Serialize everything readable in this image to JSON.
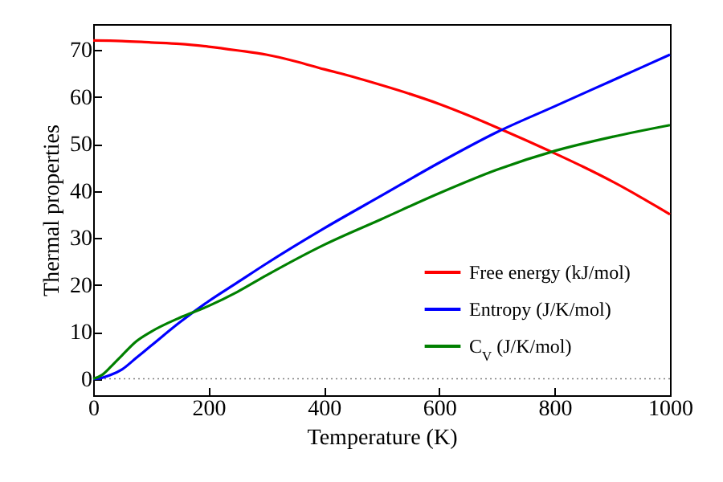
{
  "chart_data": {
    "type": "line",
    "xlabel": "Temperature (K)",
    "ylabel": "Thermal properties",
    "xlim": [
      0,
      1000
    ],
    "xticks": [
      0,
      200,
      400,
      600,
      800,
      1000
    ],
    "ylim": [
      -3.5,
      75.5
    ],
    "yticks": [
      0,
      10,
      20,
      30,
      40,
      50,
      60,
      70
    ],
    "legend": "bottom right",
    "grid": false,
    "line_style": "solid",
    "marker": "none",
    "ref_lines": [
      {
        "axis": "y",
        "value": 0,
        "color": "#808080",
        "line_style": "dotted"
      }
    ],
    "series": [
      {
        "name": "Free energy (kJ/mol)",
        "color": "#ff0000",
        "x": [
          0,
          50,
          100,
          150,
          200,
          250,
          300,
          350,
          400,
          450,
          500,
          550,
          600,
          650,
          700,
          750,
          800,
          850,
          900,
          950,
          1000
        ],
        "values": [
          72,
          71.9,
          71.6,
          71.3,
          70.7,
          69.9,
          69,
          67.6,
          65.9,
          64.3,
          62.5,
          60.6,
          58.5,
          56.1,
          53.5,
          50.8,
          48,
          45.1,
          42,
          38.6,
          35
        ]
      },
      {
        "name": "Entropy (J/K/mol)",
        "color": "#0000ff",
        "x": [
          0,
          15,
          30,
          50,
          75,
          100,
          150,
          200,
          250,
          300,
          400,
          500,
          600,
          700,
          800,
          900,
          1000
        ],
        "values": [
          0,
          0.2,
          0.8,
          2,
          4.5,
          7,
          12,
          16.5,
          20.5,
          24.5,
          32,
          39,
          46,
          52.5,
          58,
          63.5,
          69
        ]
      },
      {
        "name": "C$_{V}$ (J/K/mol)",
        "color": "#008000",
        "x": [
          0,
          15,
          30,
          50,
          75,
          100,
          150,
          200,
          250,
          300,
          400,
          500,
          600,
          700,
          800,
          900,
          1000
        ],
        "values": [
          0,
          0.8,
          2.5,
          5,
          8,
          10,
          13,
          15.5,
          18.5,
          22,
          28.5,
          34,
          39.5,
          44.5,
          48.5,
          51.5,
          54
        ]
      }
    ]
  }
}
